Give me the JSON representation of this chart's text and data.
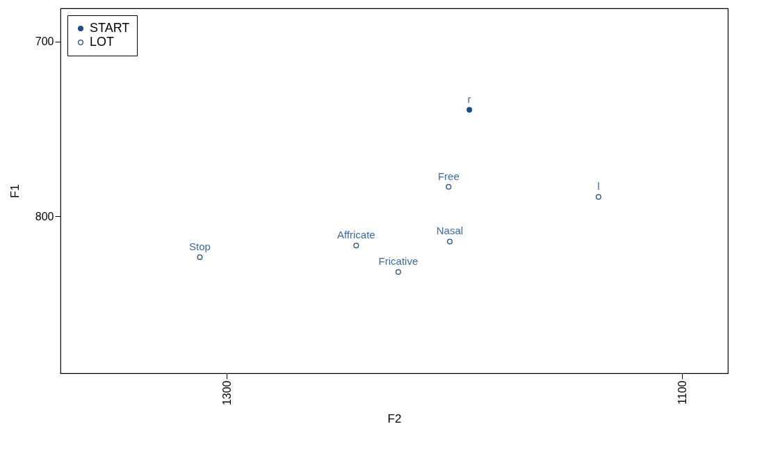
{
  "chart_data": {
    "type": "scatter",
    "xlabel": "F2",
    "ylabel": "F1",
    "series": [
      {
        "name": "START",
        "color": "#1a4e8a",
        "x": [
          1193.5
        ],
        "values": [
          739
        ]
      },
      {
        "name": "LOT",
        "color": "#1a4e8a",
        "x": [
          1202.6,
          1136.8,
          1202.1,
          1243.2,
          1311.8,
          1224.7
        ],
        "values": [
          783,
          788.8,
          814.3,
          816.6,
          823.2,
          831.7
        ]
      }
    ],
    "annotations": [
      {
        "text": "r",
        "x": 1193.5,
        "y": 739
      },
      {
        "text": "Free",
        "x": 1202.6,
        "y": 783
      },
      {
        "text": "l",
        "x": 1136.8,
        "y": 788.8
      },
      {
        "text": "Nasal",
        "x": 1202.1,
        "y": 814.3
      },
      {
        "text": "Affricate",
        "x": 1243.2,
        "y": 816.6
      },
      {
        "text": "Stop",
        "x": 1311.8,
        "y": 823.2
      },
      {
        "text": "Fricative",
        "x": 1224.7,
        "y": 831.7
      }
    ],
    "xlim": [
      1373,
      1080
    ],
    "ylim": [
      889.6,
      681
    ],
    "xticks": [
      1300,
      1100
    ],
    "yticks": [
      700,
      800
    ],
    "grid": false,
    "legend": "top left",
    "marker": "circle"
  }
}
